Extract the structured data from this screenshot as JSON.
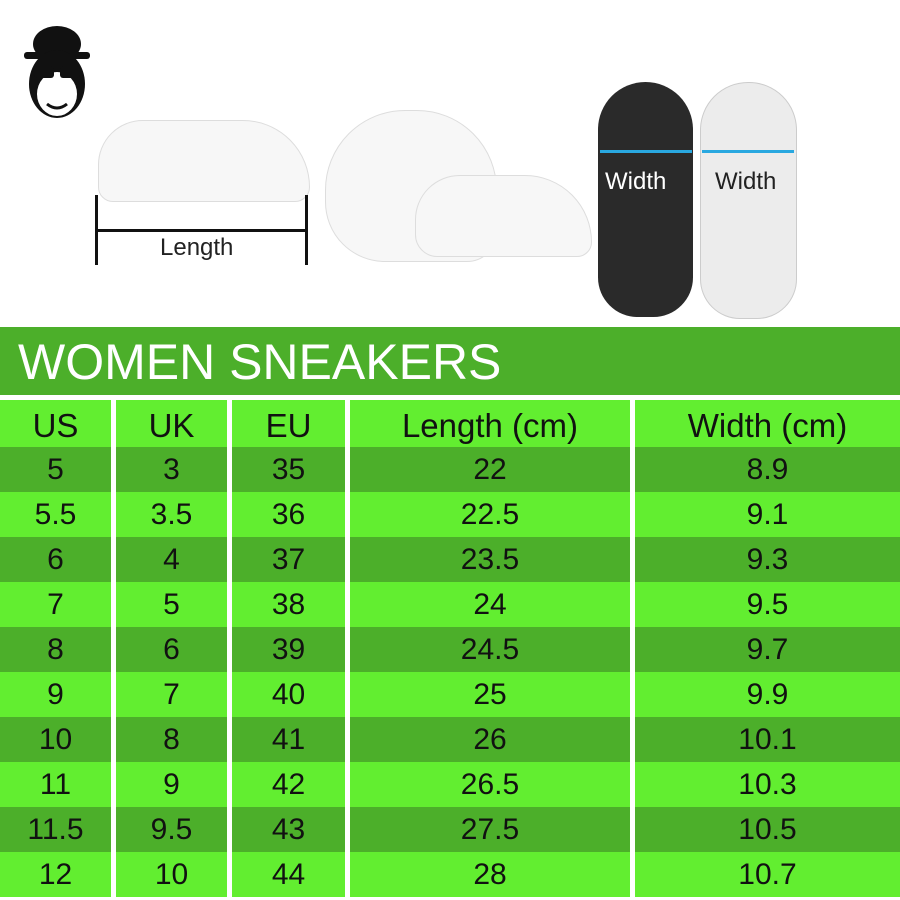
{
  "illustration": {
    "length_label": "Length",
    "width_label_dark": "Width",
    "width_label_light": "Width",
    "logo": "monkey-with-hat-and-sunglasses"
  },
  "title": "WOMEN SNEAKERS",
  "colors": {
    "banner": "#4caf2a",
    "row_dark": "#4caf2a",
    "row_light": "#62ee30",
    "arrow": "#29a8e0"
  },
  "table": {
    "headers": [
      "US",
      "UK",
      "EU",
      "Length (cm)",
      "Width (cm)"
    ],
    "rows": [
      [
        "5",
        "3",
        "35",
        "22",
        "8.9"
      ],
      [
        "5.5",
        "3.5",
        "36",
        "22.5",
        "9.1"
      ],
      [
        "6",
        "4",
        "37",
        "23.5",
        "9.3"
      ],
      [
        "7",
        "5",
        "38",
        "24",
        "9.5"
      ],
      [
        "8",
        "6",
        "39",
        "24.5",
        "9.7"
      ],
      [
        "9",
        "7",
        "40",
        "25",
        "9.9"
      ],
      [
        "10",
        "8",
        "41",
        "26",
        "10.1"
      ],
      [
        "11",
        "9",
        "42",
        "26.5",
        "10.3"
      ],
      [
        "11.5",
        "9.5",
        "43",
        "27.5",
        "10.5"
      ],
      [
        "12",
        "10",
        "44",
        "28",
        "10.7"
      ]
    ]
  }
}
